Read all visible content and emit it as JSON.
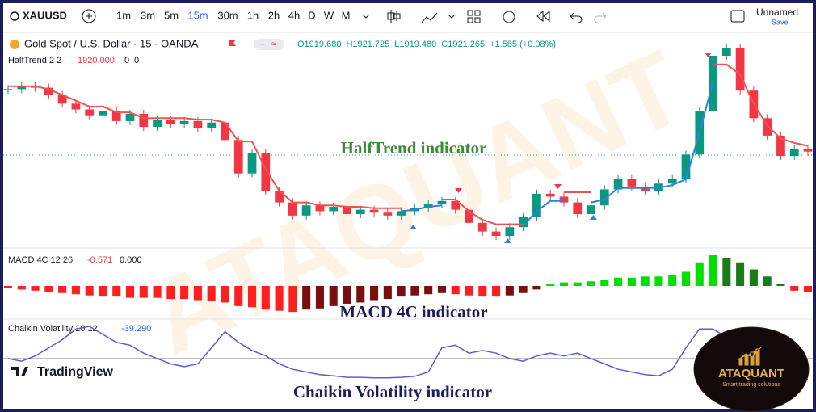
{
  "toolbar": {
    "symbol": "XAUUSD",
    "intervals": [
      "1m",
      "3m",
      "5m",
      "15m",
      "30m",
      "1h",
      "2h",
      "4h",
      "D",
      "W",
      "M"
    ],
    "active_interval": "15m",
    "layout_name": "Unnamed",
    "save": "Save"
  },
  "legend": {
    "title": "Gold Spot / U.S. Dollar · 15 · OANDA",
    "ohlc": [
      "O1919.680",
      "H1921.725",
      "L1919.480",
      "C1921.265"
    ],
    "change": "+1.585 (+0.08%)"
  },
  "price_pane": {
    "indicator": "HalfTrend 2 2",
    "indicator_value": "1920.000",
    "indicator_flags": [
      "0",
      "0"
    ],
    "caption": "HalfTrend indicator",
    "up_color": "#089981",
    "down_color": "#f23645",
    "closes": [
      1924.0,
      1924.2,
      1924.1,
      1923.6,
      1923.0,
      1922.6,
      1922.2,
      1922.5,
      1921.8,
      1922.3,
      1921.4,
      1921.9,
      1921.6,
      1921.8,
      1921.3,
      1921.7,
      1920.5,
      1918.2,
      1919.6,
      1917.0,
      1916.2,
      1915.3,
      1916.0,
      1915.6,
      1915.9,
      1915.4,
      1915.7,
      1915.5,
      1915.3,
      1915.6,
      1915.8,
      1916.1,
      1916.3,
      1915.7,
      1914.8,
      1914.2,
      1913.9,
      1914.5,
      1915.2,
      1916.8,
      1916.6,
      1916.2,
      1915.4,
      1916.0,
      1917.1,
      1917.8,
      1917.3,
      1917.0,
      1917.5,
      1917.8,
      1919.5,
      1922.5,
      1926.3,
      1926.8,
      1923.9,
      1922.0,
      1920.8,
      1919.4,
      1919.9,
      1919.7
    ],
    "halftrend": [
      {
        "color": "#ef5350",
        "values": [
          1924.2,
          1924.2,
          1924.2,
          1924.0,
          1923.6,
          1923.2,
          1922.8,
          1922.8,
          1922.4,
          1922.4,
          1922.0,
          1922.0,
          1922.0,
          1922.0,
          1921.9,
          1921.9,
          1921.7,
          1920.4,
          1920.4,
          1918.5,
          1917.0,
          1916.2,
          1916.2,
          1916.0,
          1916.0,
          1915.9,
          1915.9,
          1915.8,
          1915.8,
          1915.8,
          null,
          null,
          1916.4,
          1916.4,
          1915.6,
          1915.0,
          1914.7,
          1914.7,
          1914.7,
          null,
          null,
          1916.9,
          1916.9,
          1916.9,
          null,
          null,
          null,
          null,
          null,
          null,
          null,
          null,
          1925.7,
          1925.7,
          1925.0,
          1923.0,
          1921.5,
          1920.6,
          1920.3,
          1920.1
        ]
      },
      {
        "color": "#2f7fe0",
        "values": [
          null,
          null,
          null,
          null,
          null,
          null,
          null,
          null,
          null,
          null,
          null,
          null,
          null,
          null,
          null,
          null,
          null,
          null,
          null,
          null,
          null,
          null,
          null,
          null,
          null,
          null,
          null,
          null,
          null,
          1915.6,
          1915.7,
          1915.9,
          1916.0,
          null,
          null,
          null,
          null,
          null,
          1914.6,
          1915.6,
          1916.3,
          1916.3,
          null,
          1916.2,
          1916.4,
          1917.2,
          1917.2,
          1917.2,
          1917.2,
          1917.4,
          1917.8,
          1921.0,
          1924.5,
          null,
          null,
          null,
          null,
          null,
          null,
          null
        ]
      }
    ]
  },
  "macd_pane": {
    "name": "MACD 4C 12 26",
    "values_text": [
      "-0.571",
      "0.000"
    ],
    "caption": "MACD 4C indicator",
    "colors": [
      "#00e000",
      "#1b7a1b",
      "#ff1f1f",
      "#7a0f0f"
    ],
    "histogram": [
      -0.1,
      -0.15,
      -0.2,
      -0.25,
      -0.3,
      -0.35,
      -0.4,
      -0.45,
      -0.45,
      -0.5,
      -0.5,
      -0.5,
      -0.55,
      -0.55,
      -0.6,
      -0.65,
      -0.7,
      -0.85,
      -0.9,
      -1.0,
      -1.05,
      -1.1,
      -1.0,
      -0.95,
      -0.85,
      -0.75,
      -0.7,
      -0.6,
      -0.55,
      -0.45,
      -0.4,
      -0.35,
      -0.3,
      -0.35,
      -0.4,
      -0.45,
      -0.45,
      -0.4,
      -0.3,
      -0.15,
      0.1,
      0.15,
      0.15,
      0.2,
      0.25,
      0.35,
      0.35,
      0.4,
      0.4,
      0.45,
      0.6,
      1.0,
      1.3,
      1.2,
      1.0,
      0.7,
      0.4,
      0.1,
      -0.2,
      -0.25
    ]
  },
  "chaikin_pane": {
    "name": "Chaikin Volatility 10 12",
    "value_text": "-39.290",
    "caption": "Chaikin Volatility indicator",
    "color": "#5b5bd6",
    "line": [
      0,
      -5,
      5,
      20,
      35,
      55,
      60,
      45,
      30,
      25,
      10,
      0,
      -10,
      -15,
      -10,
      20,
      50,
      30,
      15,
      5,
      -10,
      -20,
      -25,
      -30,
      -32,
      -35,
      -35,
      -36,
      -36,
      -35,
      -33,
      -25,
      20,
      25,
      10,
      15,
      10,
      0,
      -5,
      5,
      10,
      5,
      10,
      0,
      -10,
      -20,
      -25,
      -30,
      -32,
      -20,
      20,
      55,
      55,
      40,
      20,
      10,
      -10,
      -30,
      -35,
      -39.29
    ]
  },
  "branding": {
    "tradingview": "TradingView",
    "watermark": "ATAQUANT",
    "logo": "ATAQUANT",
    "tagline": "Smart trading solutions"
  }
}
